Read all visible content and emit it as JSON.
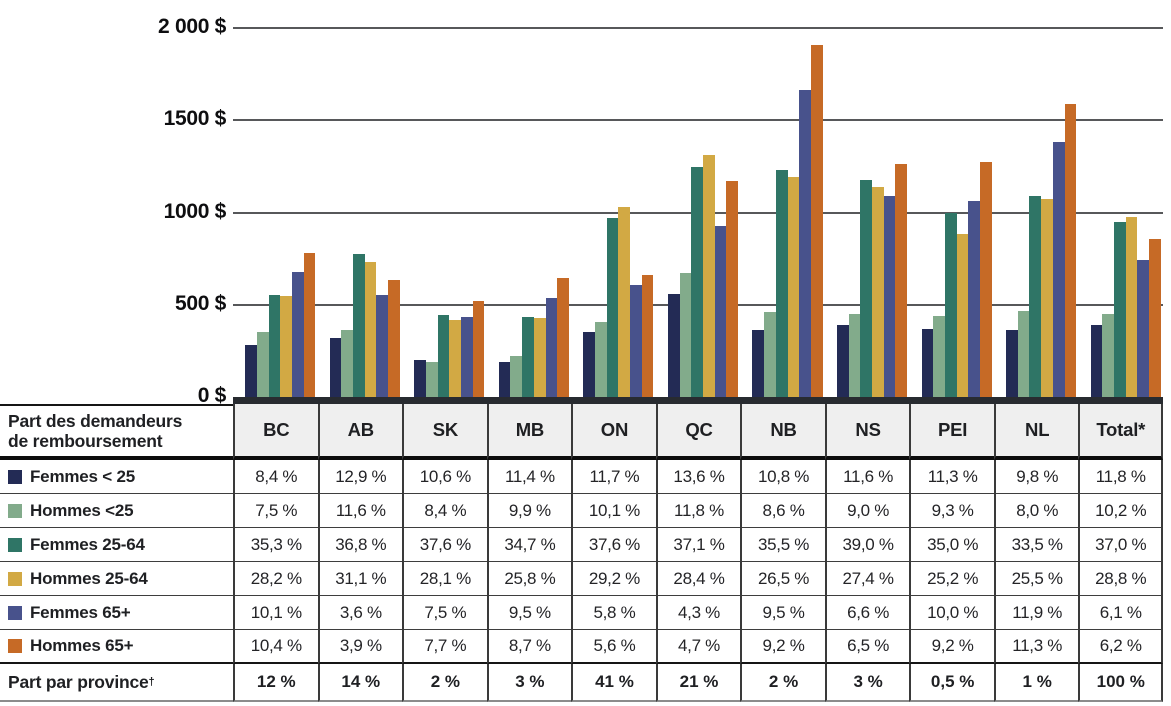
{
  "colors": {
    "grid_line": "#57585a",
    "axis_strip": "#282b30",
    "table_border_dark": "#3a3a3a",
    "header_bg": "#efefef",
    "navy": "#232b55",
    "sage": "#82ab8b",
    "teal": "#2f7566",
    "gold": "#d2a944",
    "slate": "#48528c",
    "orange": "#c66a26"
  },
  "chart_data": {
    "type": "bar",
    "title": "",
    "xlabel": "",
    "ylabel": "",
    "ylim": [
      0,
      2000
    ],
    "grid": true,
    "currency": "$",
    "categories": [
      "BC",
      "AB",
      "SK",
      "MB",
      "ON",
      "QC",
      "NB",
      "NS",
      "PEI",
      "NL",
      "Total*"
    ],
    "yticks": [
      {
        "value": 2000,
        "label": "2 000 $"
      },
      {
        "value": 1500,
        "label": "1500 $"
      },
      {
        "value": 1000,
        "label": "1000 $"
      },
      {
        "value": 500,
        "label": "500 $"
      },
      {
        "value": 0,
        "label": "0 $"
      }
    ],
    "series": [
      {
        "name": "Femmes < 25",
        "color": "#232b55",
        "values": [
          280,
          320,
          200,
          190,
          355,
          560,
          365,
          390,
          370,
          365,
          390
        ]
      },
      {
        "name": "Hommes <25",
        "color": "#82ab8b",
        "values": [
          350,
          365,
          190,
          225,
          405,
          670,
          460,
          450,
          440,
          465,
          450
        ]
      },
      {
        "name": "Femmes 25-64",
        "color": "#2f7566",
        "values": [
          555,
          775,
          445,
          435,
          970,
          1245,
          1230,
          1175,
          1000,
          1090,
          950
        ]
      },
      {
        "name": "Hommes 25-64",
        "color": "#d2a944",
        "values": [
          545,
          730,
          420,
          430,
          1030,
          1310,
          1195,
          1140,
          885,
          1075,
          975
        ]
      },
      {
        "name": "Femmes 65+",
        "color": "#48528c",
        "values": [
          680,
          555,
          435,
          535,
          605,
          925,
          1665,
          1090,
          1065,
          1380,
          740
        ]
      },
      {
        "name": "Hommes 65+",
        "color": "#c66a26",
        "values": [
          780,
          635,
          520,
          645,
          660,
          1170,
          1910,
          1265,
          1275,
          1590,
          855
        ]
      }
    ]
  },
  "table": {
    "header_label_line1": "Part des demandeurs",
    "header_label_line2": "de remboursement",
    "columns": [
      "BC",
      "AB",
      "SK",
      "MB",
      "ON",
      "QC",
      "NB",
      "NS",
      "PEI",
      "NL",
      "Total*"
    ],
    "rows": [
      {
        "label": "Femmes < 25",
        "swatch": "#232b55",
        "values": [
          "8,4 %",
          "12,9 %",
          "10,6 %",
          "11,4 %",
          "11,7 %",
          "13,6 %",
          "10,8 %",
          "11,6 %",
          "11,3 %",
          "9,8 %",
          "11,8 %"
        ]
      },
      {
        "label": "Hommes <25",
        "swatch": "#82ab8b",
        "values": [
          "7,5 %",
          "11,6 %",
          "8,4 %",
          "9,9 %",
          "10,1 %",
          "11,8 %",
          "8,6 %",
          "9,0 %",
          "9,3 %",
          "8,0 %",
          "10,2 %"
        ]
      },
      {
        "label": "Femmes 25-64",
        "swatch": "#2f7566",
        "values": [
          "35,3 %",
          "36,8 %",
          "37,6 %",
          "34,7 %",
          "37,6 %",
          "37,1 %",
          "35,5 %",
          "39,0 %",
          "35,0 %",
          "33,5 %",
          "37,0 %"
        ]
      },
      {
        "label": "Hommes 25-64",
        "swatch": "#d2a944",
        "values": [
          "28,2 %",
          "31,1 %",
          "28,1 %",
          "25,8 %",
          "29,2 %",
          "28,4 %",
          "26,5 %",
          "27,4 %",
          "25,2 %",
          "25,5 %",
          "28,8 %"
        ]
      },
      {
        "label": "Femmes 65+",
        "swatch": "#48528c",
        "values": [
          "10,1 %",
          "3,6 %",
          "7,5 %",
          "9,5 %",
          "5,8 %",
          "4,3 %",
          "9,5 %",
          "6,6 %",
          "10,0 %",
          "11,9 %",
          "6,1 %"
        ]
      },
      {
        "label": "Hommes 65+",
        "swatch": "#c66a26",
        "values": [
          "10,4 %",
          "3,9 %",
          "7,7 %",
          "8,7 %",
          "5,6 %",
          "4,7 %",
          "9,2 %",
          "6,5 %",
          "9,2 %",
          "11,3 %",
          "6,2 %"
        ]
      }
    ],
    "footer": {
      "label": "Part par province",
      "dagger": "†",
      "values": [
        "12 %",
        "14 %",
        "2 %",
        "3 %",
        "41 %",
        "21 %",
        "2 %",
        "3 %",
        "0,5 %",
        "1 %",
        "100 %"
      ]
    }
  }
}
